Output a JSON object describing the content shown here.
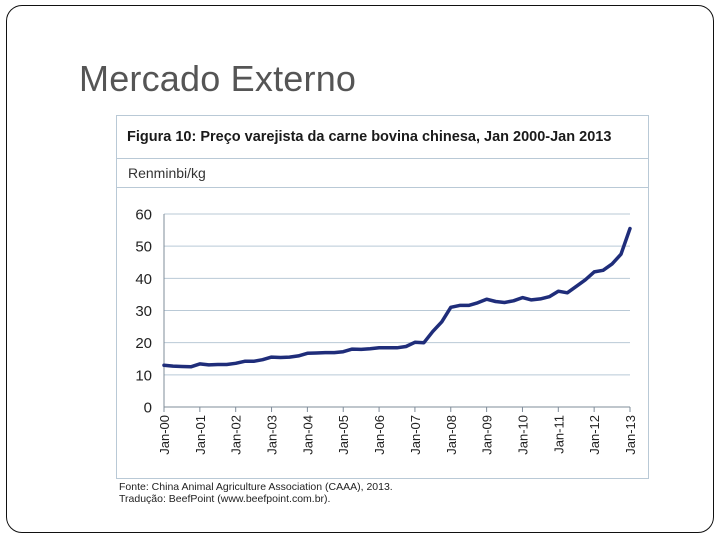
{
  "slide": {
    "title": "Mercado Externo"
  },
  "figure": {
    "title": "Figura 10: Preço varejista da carne bovina chinesa, Jan 2000-Jan 2013",
    "units": "Renminbi/kg"
  },
  "source": {
    "line1": "Fonte: China Animal Agriculture Association (CAAA), 2013.",
    "line2": "Tradução: BeefPoint (www.beefpoint.com.br)."
  },
  "colors": {
    "series": "#1f2d7a",
    "grid": "#b9c9d6",
    "axis": "#7f8c99"
  },
  "chart_data": {
    "type": "line",
    "title": "Figura 10: Preço varejista da carne bovina chinesa, Jan 2000-Jan 2013",
    "xlabel": "",
    "ylabel": "Renminbi/kg",
    "ylim": [
      0,
      60
    ],
    "yticks": [
      0,
      10,
      20,
      30,
      40,
      50,
      60
    ],
    "xticks": [
      "Jan-00",
      "Jan-01",
      "Jan-02",
      "Jan-03",
      "Jan-04",
      "Jan-05",
      "Jan-06",
      "Jan-07",
      "Jan-08",
      "Jan-09",
      "Jan-10",
      "Jan-11",
      "Jan-12",
      "Jan-13"
    ],
    "grid": true,
    "legend": "none",
    "series": [
      {
        "x": [
          "Jan-00",
          "Apr-00",
          "Jul-00",
          "Oct-00",
          "Jan-01",
          "Apr-01",
          "Jul-01",
          "Oct-01",
          "Jan-02",
          "Apr-02",
          "Jul-02",
          "Oct-02",
          "Jan-03",
          "Apr-03",
          "Jul-03",
          "Oct-03",
          "Jan-04",
          "Apr-04",
          "Jul-04",
          "Oct-04",
          "Jan-05",
          "Apr-05",
          "Jul-05",
          "Oct-05",
          "Jan-06",
          "Apr-06",
          "Jul-06",
          "Oct-06",
          "Jan-07",
          "Apr-07",
          "Jul-07",
          "Oct-07",
          "Jan-08",
          "Apr-08",
          "Jul-08",
          "Oct-08",
          "Jan-09",
          "Apr-09",
          "Jul-09",
          "Oct-09",
          "Jan-10",
          "Apr-10",
          "Jul-10",
          "Oct-10",
          "Jan-11",
          "Apr-11",
          "Jul-11",
          "Oct-11",
          "Jan-12",
          "Apr-12",
          "Jul-12",
          "Oct-12",
          "Jan-13"
        ],
        "values": [
          13,
          12.7,
          12.6,
          12.5,
          13.4,
          13.1,
          13.2,
          13.2,
          13.6,
          14.2,
          14.2,
          14.7,
          15.5,
          15.4,
          15.5,
          15.9,
          16.7,
          16.8,
          16.9,
          16.9,
          17.2,
          18.0,
          17.9,
          18.1,
          18.4,
          18.4,
          18.4,
          18.8,
          20.1,
          20.0,
          23.5,
          26.5,
          31.0,
          31.6,
          31.6,
          32.4,
          33.5,
          32.8,
          32.5,
          33.0,
          34.0,
          33.3,
          33.6,
          34.3,
          36.0,
          35.5,
          37.5,
          39.5,
          42.0,
          42.5,
          44.5,
          47.5,
          55.5
        ]
      }
    ]
  }
}
